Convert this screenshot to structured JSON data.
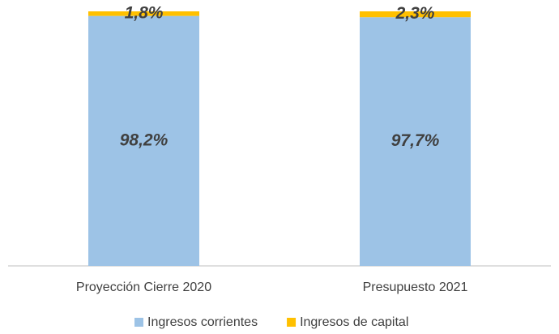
{
  "chart_data": {
    "type": "bar",
    "stacked": true,
    "categories": [
      "Proyección Cierre 2020",
      "Presupuesto 2021"
    ],
    "series": [
      {
        "name": "Ingresos corrientes",
        "color": "#9dc3e6",
        "values": [
          98.2,
          97.7
        ],
        "value_labels": [
          "98,2%",
          "97,7%"
        ]
      },
      {
        "name": "Ingresos de capital",
        "color": "#ffc000",
        "values": [
          1.8,
          2.3
        ],
        "value_labels": [
          "1,8%",
          "2,3%"
        ]
      }
    ],
    "legend": "bottom"
  }
}
